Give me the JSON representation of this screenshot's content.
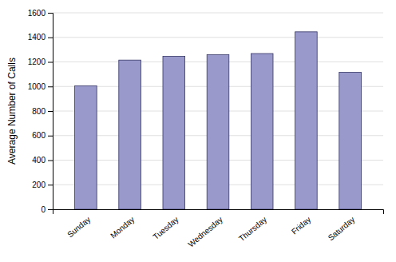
{
  "chart_data": {
    "type": "bar",
    "categories": [
      "Sunday",
      "Monday",
      "Tuesday",
      "Wednesday",
      "Thursday",
      "Friday",
      "Saturday"
    ],
    "values": [
      1005,
      1215,
      1245,
      1258,
      1268,
      1445,
      1115
    ],
    "color": "#9999cc",
    "ylabel": "Average Number of Calls",
    "ylim": [
      0,
      1600
    ],
    "yticks": [
      0,
      200,
      400,
      600,
      800,
      1000,
      1200,
      1400,
      1600
    ],
    "grid": true
  }
}
